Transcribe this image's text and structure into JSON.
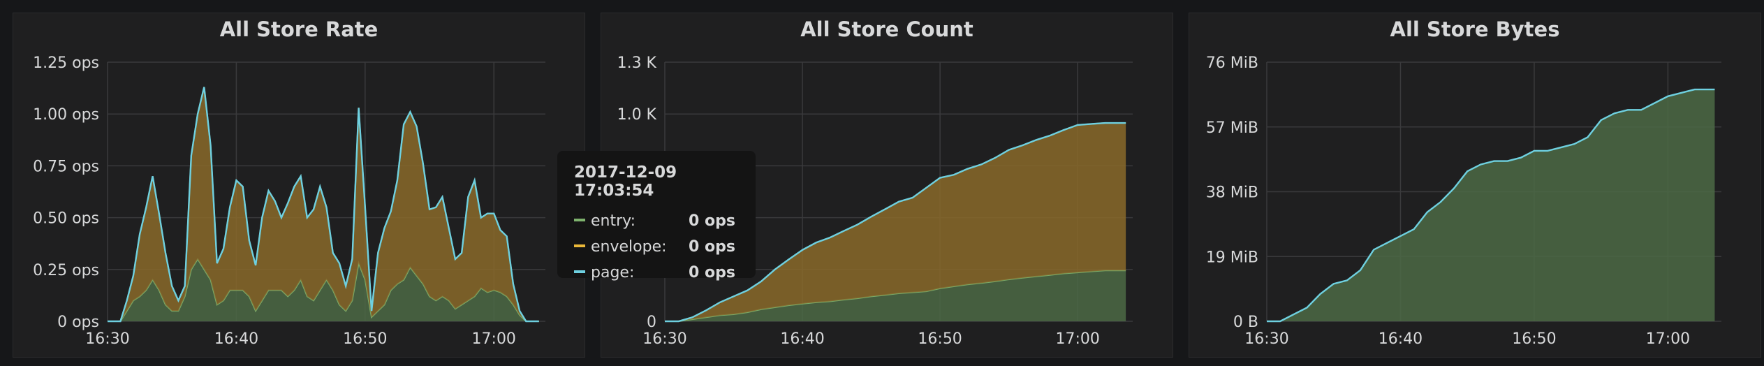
{
  "colors": {
    "entry": "#7eb26d",
    "envelope": "#eab839",
    "page": "#6ed0e0"
  },
  "panels": [
    {
      "title": "All Store Rate"
    },
    {
      "title": "All Store Count"
    },
    {
      "title": "All Store Bytes"
    }
  ],
  "tooltip": {
    "time": "2017-12-09 17:03:54",
    "rows": [
      {
        "label": "entry:",
        "value": "0 ops",
        "color": "#7eb26d"
      },
      {
        "label": "envelope:",
        "value": "0 ops",
        "color": "#eab839"
      },
      {
        "label": "page:",
        "value": "0 ops",
        "color": "#6ed0e0"
      }
    ]
  },
  "chart_data": [
    {
      "type": "area",
      "title": "All Store Rate",
      "stacked": true,
      "x_ticks": [
        "16:30",
        "16:40",
        "16:50",
        "17:00"
      ],
      "xlim": [
        "16:30",
        "17:04"
      ],
      "y_ticks": [
        "0 ops",
        "0.25 ops",
        "0.50 ops",
        "0.75 ops",
        "1.00 ops",
        "1.25 ops"
      ],
      "ylim": [
        0,
        1.25
      ],
      "grid": true,
      "x": [
        "16:30",
        "16:30.5",
        "16:31",
        "16:31.5",
        "16:32",
        "16:32.5",
        "16:33",
        "16:33.5",
        "16:34",
        "16:34.5",
        "16:35",
        "16:35.5",
        "16:36",
        "16:36.5",
        "16:37",
        "16:37.5",
        "16:38",
        "16:38.5",
        "16:39",
        "16:39.5",
        "16:40",
        "16:40.5",
        "16:41",
        "16:41.5",
        "16:42",
        "16:42.5",
        "16:43",
        "16:43.5",
        "16:44",
        "16:44.5",
        "16:45",
        "16:45.5",
        "16:46",
        "16:46.5",
        "16:47",
        "16:47.5",
        "16:48",
        "16:48.5",
        "16:49",
        "16:49.5",
        "16:50",
        "16:50.5",
        "16:51",
        "16:51.5",
        "16:52",
        "16:52.5",
        "16:53",
        "16:53.5",
        "16:54",
        "16:54.5",
        "16:55",
        "16:55.5",
        "16:56",
        "16:56.5",
        "16:57",
        "16:57.5",
        "16:58",
        "16:58.5",
        "16:59",
        "16:59.5",
        "17:00",
        "17:00.5",
        "17:01",
        "17:01.5",
        "17:02",
        "17:02.5",
        "17:03",
        "17:03.5"
      ],
      "series": [
        {
          "name": "entry",
          "values": [
            0,
            0,
            0,
            0.05,
            0.1,
            0.12,
            0.15,
            0.2,
            0.15,
            0.08,
            0.05,
            0.05,
            0.12,
            0.25,
            0.3,
            0.25,
            0.2,
            0.08,
            0.1,
            0.15,
            0.15,
            0.15,
            0.12,
            0.05,
            0.1,
            0.15,
            0.15,
            0.15,
            0.12,
            0.15,
            0.2,
            0.12,
            0.1,
            0.15,
            0.2,
            0.15,
            0.08,
            0.05,
            0.1,
            0.28,
            0.2,
            0.02,
            0.05,
            0.08,
            0.15,
            0.18,
            0.2,
            0.26,
            0.22,
            0.18,
            0.12,
            0.1,
            0.12,
            0.1,
            0.06,
            0.08,
            0.1,
            0.12,
            0.16,
            0.14,
            0.15,
            0.14,
            0.12,
            0.08,
            0.03,
            0,
            0,
            0
          ]
        },
        {
          "name": "envelope",
          "values": [
            0,
            0,
            0,
            0.05,
            0.12,
            0.3,
            0.4,
            0.5,
            0.37,
            0.25,
            0.12,
            0.05,
            0.05,
            0.55,
            0.7,
            0.88,
            0.65,
            0.2,
            0.25,
            0.4,
            0.53,
            0.5,
            0.27,
            0.22,
            0.4,
            0.48,
            0.43,
            0.35,
            0.45,
            0.5,
            0.5,
            0.38,
            0.44,
            0.5,
            0.35,
            0.18,
            0.2,
            0.12,
            0.2,
            0.75,
            0.35,
            0.03,
            0.28,
            0.37,
            0.38,
            0.5,
            0.75,
            0.75,
            0.72,
            0.58,
            0.42,
            0.45,
            0.48,
            0.35,
            0.24,
            0.25,
            0.5,
            0.56,
            0.34,
            0.38,
            0.37,
            0.3,
            0.29,
            0.1,
            0.02,
            0,
            0,
            0
          ]
        },
        {
          "name": "page",
          "values": [
            0,
            0,
            0,
            0,
            0,
            0,
            0,
            0,
            0,
            0,
            0,
            0,
            0,
            0,
            0,
            0,
            0,
            0,
            0,
            0,
            0,
            0,
            0,
            0,
            0,
            0,
            0,
            0,
            0,
            0,
            0,
            0,
            0,
            0,
            0,
            0,
            0,
            0,
            0,
            0,
            0,
            0,
            0,
            0,
            0,
            0,
            0,
            0,
            0,
            0,
            0,
            0,
            0,
            0,
            0,
            0,
            0,
            0,
            0,
            0,
            0,
            0,
            0,
            0,
            0,
            0,
            0,
            0
          ]
        }
      ]
    },
    {
      "type": "area",
      "title": "All Store Count",
      "stacked": true,
      "x_ticks": [
        "16:30",
        "16:40",
        "16:50",
        "17:00"
      ],
      "xlim": [
        "16:30",
        "17:04"
      ],
      "y_ticks": [
        "0",
        "",
        "",
        "",
        "1.0 K",
        "1.3 K"
      ],
      "ylim": [
        0,
        1300
      ],
      "grid": true,
      "x": [
        "16:30",
        "16:31",
        "16:32",
        "16:33",
        "16:34",
        "16:35",
        "16:36",
        "16:37",
        "16:38",
        "16:39",
        "16:40",
        "16:41",
        "16:42",
        "16:43",
        "16:44",
        "16:45",
        "16:46",
        "16:47",
        "16:48",
        "16:49",
        "16:50",
        "16:51",
        "16:52",
        "16:53",
        "16:54",
        "16:55",
        "16:56",
        "16:57",
        "16:58",
        "16:59",
        "17:00",
        "17:01",
        "17:02",
        "17:03",
        "17:03.5"
      ],
      "series": [
        {
          "name": "entry",
          "values": [
            0,
            0,
            10,
            20,
            30,
            35,
            45,
            60,
            70,
            80,
            88,
            95,
            100,
            108,
            115,
            125,
            132,
            140,
            145,
            150,
            165,
            175,
            185,
            192,
            200,
            210,
            218,
            225,
            232,
            240,
            245,
            250,
            255,
            255,
            255
          ]
        },
        {
          "name": "envelope",
          "values": [
            0,
            0,
            10,
            35,
            65,
            90,
            110,
            140,
            190,
            230,
            270,
            300,
            320,
            345,
            370,
            400,
            430,
            460,
            475,
            520,
            555,
            560,
            580,
            595,
            620,
            650,
            665,
            685,
            700,
            720,
            740,
            740,
            740,
            740,
            740
          ]
        },
        {
          "name": "page",
          "values": [
            0,
            0,
            0,
            0,
            0,
            0,
            0,
            0,
            0,
            0,
            0,
            0,
            0,
            0,
            0,
            0,
            0,
            0,
            0,
            0,
            0,
            0,
            0,
            0,
            0,
            0,
            0,
            0,
            0,
            0,
            0,
            0,
            0,
            0,
            0
          ]
        }
      ]
    },
    {
      "type": "area",
      "title": "All Store Bytes",
      "stacked": true,
      "x_ticks": [
        "16:30",
        "16:40",
        "16:50",
        "17:00"
      ],
      "xlim": [
        "16:30",
        "17:04"
      ],
      "y_ticks": [
        "0 B",
        "19 MiB",
        "38 MiB",
        "57 MiB",
        "76 MiB"
      ],
      "ylim": [
        0,
        76
      ],
      "grid": true,
      "x": [
        "16:30",
        "16:31",
        "16:32",
        "16:33",
        "16:34",
        "16:35",
        "16:36",
        "16:37",
        "16:38",
        "16:39",
        "16:40",
        "16:41",
        "16:42",
        "16:43",
        "16:44",
        "16:45",
        "16:46",
        "16:47",
        "16:48",
        "16:49",
        "16:50",
        "16:51",
        "16:52",
        "16:53",
        "16:54",
        "16:55",
        "16:56",
        "16:57",
        "16:58",
        "16:59",
        "17:00",
        "17:01",
        "17:02",
        "17:03",
        "17:03.5"
      ],
      "series": [
        {
          "name": "entry",
          "values": [
            0,
            0,
            2,
            4,
            8,
            11,
            12,
            15,
            21,
            23,
            25,
            27,
            32,
            35,
            39,
            44,
            46,
            47,
            47,
            48,
            50,
            50,
            51,
            52,
            54,
            59,
            61,
            62,
            62,
            64,
            66,
            67,
            68,
            68,
            68
          ]
        },
        {
          "name": "envelope",
          "values": [
            0,
            0,
            0,
            0,
            0,
            0,
            0,
            0,
            0,
            0,
            0,
            0,
            0,
            0,
            0,
            0,
            0,
            0,
            0,
            0,
            0,
            0,
            0,
            0,
            0,
            0,
            0,
            0,
            0,
            0,
            0,
            0,
            0,
            0,
            0
          ]
        },
        {
          "name": "page",
          "values": [
            0,
            0,
            0,
            0,
            0,
            0,
            0,
            0,
            0,
            0,
            0,
            0,
            0,
            0,
            0,
            0,
            0,
            0,
            0,
            0,
            0,
            0,
            0,
            0,
            0,
            0,
            0,
            0,
            0,
            0,
            0,
            0,
            0,
            0,
            0
          ]
        }
      ]
    }
  ]
}
